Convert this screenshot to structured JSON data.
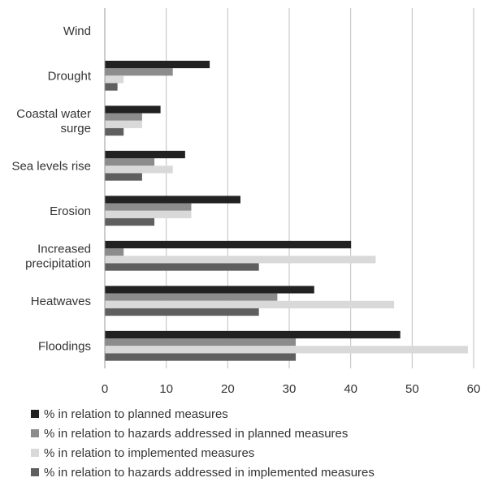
{
  "chart_data": {
    "type": "bar",
    "orientation": "horizontal",
    "categories": [
      "Wind",
      "Drought",
      "Coastal water surge",
      "Sea levels rise",
      "Erosion",
      "Increased precipitation",
      "Heatwaves",
      "Floodings"
    ],
    "category_lines": [
      [
        "Wind"
      ],
      [
        "Drought"
      ],
      [
        "Coastal water",
        "surge"
      ],
      [
        "Sea levels rise"
      ],
      [
        "Erosion"
      ],
      [
        "Increased",
        "precipitation"
      ],
      [
        "Heatwaves"
      ],
      [
        "Floodings"
      ]
    ],
    "series": [
      {
        "name": "% in relation to planned measures",
        "color": "#222222",
        "values": [
          0,
          17,
          9,
          13,
          22,
          40,
          34,
          48
        ]
      },
      {
        "name": "% in relation to hazards addressed in planned measures",
        "color": "#8c8c8c",
        "values": [
          0,
          11,
          6,
          8,
          14,
          3,
          28,
          31
        ]
      },
      {
        "name": "% in relation to implemented measures",
        "color": "#d9d9d9",
        "values": [
          0,
          3,
          6,
          11,
          14,
          44,
          47,
          59
        ]
      },
      {
        "name": "% in relation to hazards addressed in implemented measures",
        "color": "#5f5f5f",
        "values": [
          0,
          2,
          3,
          6,
          8,
          25,
          25,
          31
        ]
      }
    ],
    "x_ticks": [
      "0",
      "10",
      "20",
      "30",
      "40",
      "50",
      "60"
    ],
    "xlim": [
      0,
      60
    ],
    "grid": "vertical",
    "legend_position": "bottom",
    "title": "",
    "xlabel": "",
    "ylabel": ""
  }
}
